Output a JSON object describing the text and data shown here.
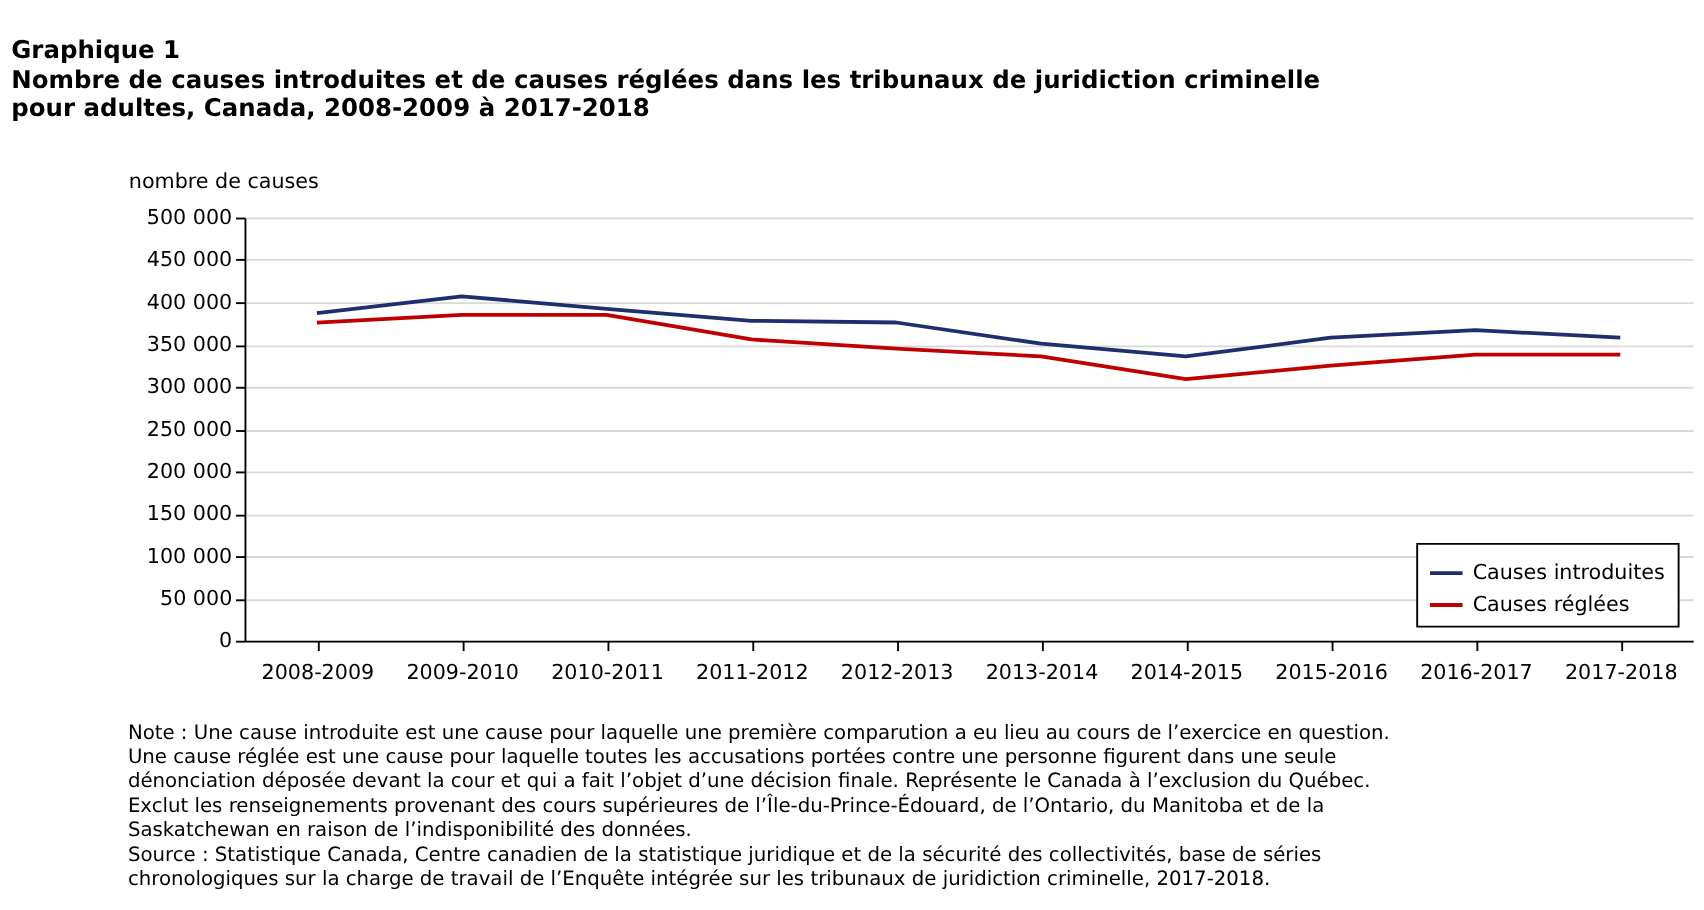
{
  "chart_data": {
    "type": "line",
    "title": "Graphique 1",
    "subtitle": "Nombre de causes introduites et de causes réglées dans les tribunaux de juridiction criminelle pour adultes, Canada, 2008-2009 à 2017-2018",
    "ylabel": "nombre de causes",
    "categories": [
      "2008-2009",
      "2009-2010",
      "2010-2011",
      "2011-2012",
      "2012-2013",
      "2013-2014",
      "2014-2015",
      "2015-2016",
      "2016-2017",
      "2017-2018"
    ],
    "series": [
      {
        "name": "Causes introduites",
        "color": "#1f2e6e",
        "values": [
          387000,
          407000,
          392000,
          378000,
          376000,
          351000,
          336000,
          358000,
          367000,
          358000
        ]
      },
      {
        "name": "Causes réglées",
        "color": "#c00000",
        "values": [
          376000,
          385000,
          385000,
          356000,
          345000,
          336000,
          309000,
          325000,
          338000,
          338000
        ]
      }
    ],
    "ylim": [
      0,
      500000
    ],
    "yticks": [
      {
        "value": 0,
        "label": "0"
      },
      {
        "value": 50000,
        "label": "50 000"
      },
      {
        "value": 100000,
        "label": "100 000"
      },
      {
        "value": 150000,
        "label": "150 000"
      },
      {
        "value": 200000,
        "label": "200 000"
      },
      {
        "value": 250000,
        "label": "250 000"
      },
      {
        "value": 300000,
        "label": "300 000"
      },
      {
        "value": 350000,
        "label": "350 000"
      },
      {
        "value": 400000,
        "label": "400 000"
      },
      {
        "value": 450000,
        "label": "450 000"
      },
      {
        "value": 500000,
        "label": "500 000"
      }
    ],
    "grid": "y",
    "legend": "bottom right",
    "marker": "none",
    "line_style": "solid",
    "annotations": [
      "Note : Une cause introduite est une cause pour laquelle une première comparution a eu lieu au cours de l’exercice en question. Une cause réglée est une cause pour laquelle toutes les accusations portées contre une personne figurent dans une seule dénonciation déposée devant la cour et qui a fait l’objet d’une décision finale. Représente le Canada à l’exclusion du Québec. Exclut les renseignements provenant des cours supérieures de l’Île-du-Prince-Édouard, de l’Ontario, du Manitoba et de la Saskatchewan en raison de l’indisponibilité des données.",
      "Source : Statistique Canada, Centre canadien de la statistique juridique et de la sécurité des collectivités, base de séries chronologiques sur la charge de travail de l’Enquête intégrée sur les tribunaux de juridiction criminelle, 2017-2018."
    ]
  }
}
